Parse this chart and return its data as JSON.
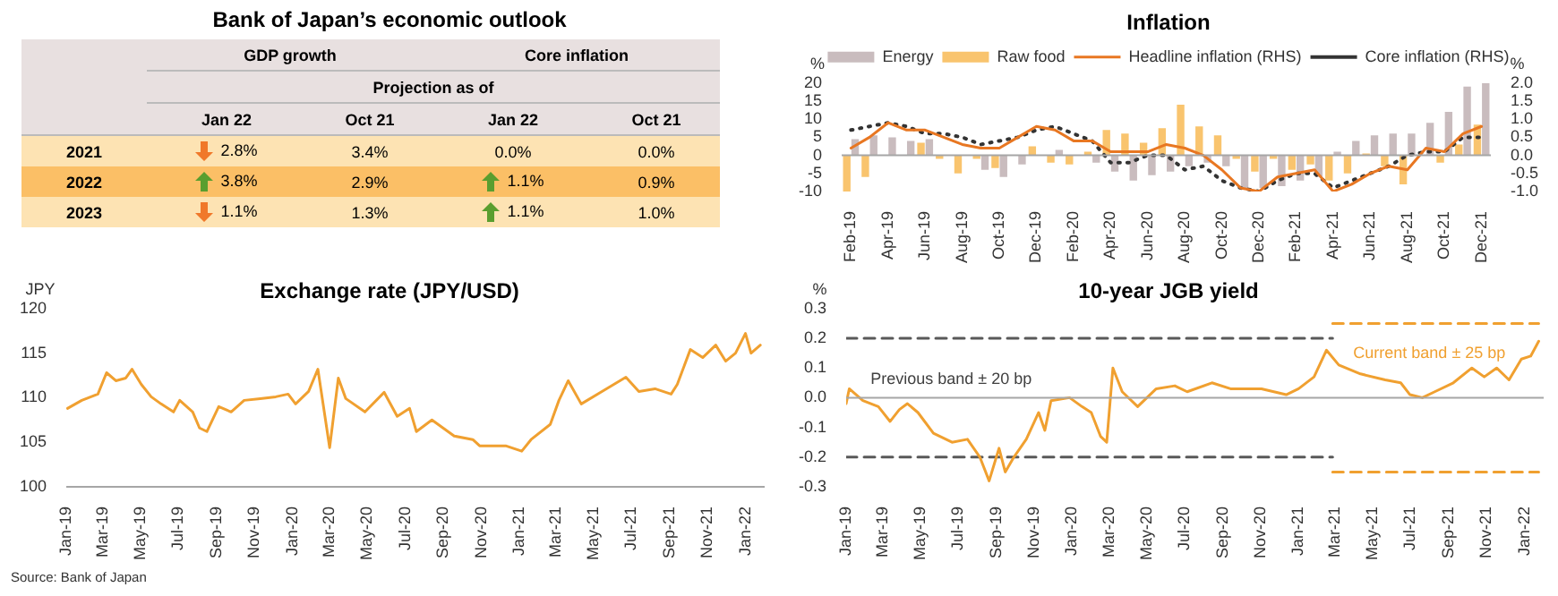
{
  "chart_data": [
    {
      "type": "other",
      "title": "Bank of Japan’s economic outlook",
      "annotations": [
        "GDP growth",
        "Core inflation",
        "Projection as of"
      ],
      "categories": [
        "Jan 22",
        "Oct 21",
        "Jan 22",
        "Oct 21"
      ],
      "y_categories": [
        "2021",
        "2022",
        "2023"
      ],
      "cell_labels": [
        [
          "2.8%",
          "3.4%",
          "0.0%",
          "0.0%"
        ],
        [
          "3.8%",
          "2.9%",
          "1.1%",
          "0.9%"
        ],
        [
          "1.1%",
          "1.3%",
          "1.1%",
          "1.0%"
        ]
      ]
    },
    {
      "type": "bar",
      "title": "Inflation",
      "ylabel": "%",
      "y2label": "%",
      "legend": "top",
      "categories": [
        "Feb-19",
        null,
        "Apr-19",
        null,
        "Jun-19",
        null,
        "Aug-19",
        null,
        "Oct-19",
        null,
        "Dec-19",
        null,
        "Feb-20",
        null,
        "Apr-20",
        null,
        "Jun-20",
        null,
        "Aug-20",
        null,
        "Oct-20",
        null,
        "Dec-20",
        null,
        "Feb-21",
        null,
        "Apr-21",
        null,
        "Jun-21",
        null,
        "Aug-21",
        null,
        "Oct-21",
        null,
        "Dec-21"
      ],
      "ylim": [
        -10,
        20
      ],
      "yticks": [
        -10,
        -5,
        0,
        5,
        10,
        15,
        20
      ],
      "y2lim": [
        -1,
        2
      ],
      "y2ticks": [
        {
          "value": -1,
          "label": "-1.0"
        },
        {
          "value": -0.5,
          "label": "-0.5"
        },
        {
          "value": 0,
          "label": "0.0"
        },
        {
          "value": 0.5,
          "label": "0.5"
        },
        {
          "value": 1,
          "label": "1.0"
        },
        {
          "value": 1.5,
          "label": "1.5"
        },
        {
          "value": 2,
          "label": "2.0"
        }
      ],
      "series": [
        {
          "name": "Energy",
          "color": "#c9bcbe",
          "values": [
            4.5,
            5.5,
            5,
            4,
            4.5,
            0,
            0,
            -4,
            -6,
            -2.5,
            null,
            1.5,
            null,
            -2,
            -4.5,
            -7,
            -5.5,
            -4.5,
            -3,
            -2,
            -3,
            -9,
            -9,
            -8.5,
            -7,
            -6,
            1,
            4,
            5.5,
            6,
            6,
            9,
            12,
            19,
            20
          ]
        },
        {
          "name": "Raw food",
          "color": "#f9c46e",
          "values": [
            -10,
            -6,
            0,
            0,
            3.5,
            -1,
            -5,
            -1,
            -3.5,
            0,
            2.5,
            -2,
            -2.5,
            1,
            7,
            6,
            3.5,
            7.5,
            14,
            8,
            5.5,
            -1,
            -4.5,
            -1,
            -4,
            -2.5,
            -7,
            -5,
            0.5,
            -3,
            -8,
            0,
            -2,
            3,
            8.5
          ]
        },
        {
          "name": "Headline inflation (RHS)",
          "type": "line",
          "axis": "y2",
          "color": "#e87722",
          "values": [
            0.2,
            0.5,
            0.9,
            0.7,
            0.7,
            0.5,
            0.3,
            0.2,
            0.2,
            0.5,
            0.8,
            0.7,
            0.4,
            0.4,
            0.1,
            0.1,
            0.1,
            0.3,
            0.2,
            0.0,
            -0.4,
            -0.9,
            -1.0,
            -0.6,
            -0.5,
            -0.4,
            -1.0,
            -0.8,
            -0.5,
            -0.3,
            -0.4,
            0.2,
            0.1,
            0.6,
            0.8
          ]
        },
        {
          "name": "Core inflation (RHS)",
          "type": "line",
          "axis": "y2",
          "color": "#333333",
          "line_style": "dotted",
          "values": [
            0.7,
            0.8,
            0.9,
            0.8,
            0.6,
            0.6,
            0.5,
            0.3,
            0.4,
            0.5,
            0.7,
            0.8,
            0.6,
            0.4,
            -0.2,
            -0.2,
            0.0,
            0.0,
            -0.4,
            -0.3,
            -0.7,
            -0.9,
            -1.0,
            -0.7,
            -0.5,
            -0.5,
            -0.9,
            -0.7,
            -0.5,
            -0.3,
            0.0,
            0.1,
            0.1,
            0.5,
            0.5
          ]
        }
      ]
    },
    {
      "type": "line",
      "title": "Exchange rate (JPY/USD)",
      "ylabel": "JPY",
      "color": "#f0a030",
      "x": [
        "2019-01-03",
        "2019-01-26",
        "2019-02-21",
        "2019-03-07",
        "2019-03-22",
        "2019-04-07",
        "2019-04-17",
        "2019-05-02",
        "2019-05-18",
        "2019-06-03",
        "2019-06-23",
        "2019-07-03",
        "2019-07-24",
        "2019-08-04",
        "2019-08-16",
        "2019-09-04",
        "2019-09-24",
        "2019-10-15",
        "2019-11-10",
        "2019-12-05",
        "2019-12-25",
        "2020-01-06",
        "2020-01-27",
        "2020-02-11",
        "2020-03-01",
        "2020-03-15",
        "2020-03-27",
        "2020-04-27",
        "2020-05-28",
        "2020-06-18",
        "2020-07-08",
        "2020-07-19",
        "2020-08-13",
        "2020-09-18",
        "2020-10-18",
        "2020-10-29",
        "2020-12-10",
        "2021-01-05",
        "2021-01-20",
        "2021-02-20",
        "2021-03-06",
        "2021-03-21",
        "2021-04-11",
        "2021-05-12",
        "2021-06-22",
        "2021-07-13",
        "2021-08-08",
        "2021-09-03",
        "2021-09-13",
        "2021-10-04",
        "2021-10-24",
        "2021-11-14",
        "2021-11-30",
        "2021-12-16",
        "2022-01-01",
        "2022-01-10",
        "2022-01-25"
      ],
      "values": [
        108.8,
        109.7,
        110.4,
        112.8,
        111.9,
        112.2,
        113.2,
        111.5,
        110.1,
        109.3,
        108.4,
        109.7,
        108.4,
        106.6,
        106.2,
        109.0,
        108.4,
        109.7,
        109.9,
        110.1,
        110.4,
        109.3,
        110.7,
        113.2,
        104.4,
        112.2,
        109.9,
        108.4,
        110.6,
        107.9,
        108.8,
        106.2,
        107.5,
        105.7,
        105.3,
        104.6,
        104.6,
        104.0,
        105.3,
        107.0,
        109.7,
        111.9,
        109.3,
        110.6,
        112.3,
        110.7,
        111.0,
        110.4,
        111.5,
        115.4,
        114.5,
        115.9,
        114.1,
        115.0,
        117.2,
        115.0,
        115.9
      ],
      "xlim": [
        "2019-01-01",
        "2022-02-01"
      ],
      "xticks": [
        {
          "value": "2019-01",
          "label": "Jan-19"
        },
        {
          "value": "2019-03",
          "label": "Mar-19"
        },
        {
          "value": "2019-05",
          "label": "May-19"
        },
        {
          "value": "2019-07",
          "label": "Jul-19"
        },
        {
          "value": "2019-09",
          "label": "Sep-19"
        },
        {
          "value": "2019-11",
          "label": "Nov-19"
        },
        {
          "value": "2020-01",
          "label": "Jan-20"
        },
        {
          "value": "2020-03",
          "label": "Mar-20"
        },
        {
          "value": "2020-05",
          "label": "May-20"
        },
        {
          "value": "2020-07",
          "label": "Jul-20"
        },
        {
          "value": "2020-09",
          "label": "Sep-20"
        },
        {
          "value": "2020-11",
          "label": "Nov-20"
        },
        {
          "value": "2021-01",
          "label": "Jan-21"
        },
        {
          "value": "2021-03",
          "label": "Mar-21"
        },
        {
          "value": "2021-05",
          "label": "May-21"
        },
        {
          "value": "2021-07",
          "label": "Jul-21"
        },
        {
          "value": "2021-09",
          "label": "Sep-21"
        },
        {
          "value": "2021-11",
          "label": "Nov-21"
        },
        {
          "value": "2022-01",
          "label": "Jan-22"
        }
      ],
      "ylim": [
        100,
        120
      ],
      "yticks": [
        100,
        105,
        110,
        115,
        120
      ],
      "annotations": [
        "Source: Bank of Japan"
      ]
    },
    {
      "type": "line",
      "title": "10-year JGB yield",
      "ylabel": "%",
      "series": [
        {
          "color": "#f0a030",
          "x": [
            "2019-01-01",
            "2019-01-06",
            "2019-01-28",
            "2019-02-22",
            "2019-03-13",
            "2019-03-28",
            "2019-04-10",
            "2019-04-27",
            "2019-05-22",
            "2019-06-21",
            "2019-07-16",
            "2019-08-05",
            "2019-08-20",
            "2019-09-05",
            "2019-09-15",
            "2019-09-29",
            "2019-10-19",
            "2019-11-08",
            "2019-11-18",
            "2019-11-28",
            "2019-12-28",
            "2020-01-17",
            "2020-02-01",
            "2020-02-16",
            "2020-02-26",
            "2020-03-07",
            "2020-03-22",
            "2020-04-16",
            "2020-05-16",
            "2020-06-15",
            "2020-07-05",
            "2020-08-14",
            "2020-09-13",
            "2020-11-02",
            "2020-12-12",
            "2021-01-01",
            "2021-01-26",
            "2021-02-15",
            "2021-03-07",
            "2021-04-11",
            "2021-05-21",
            "2021-06-15",
            "2021-06-30",
            "2021-07-20",
            "2021-08-09",
            "2021-09-08",
            "2021-10-08",
            "2021-10-28",
            "2021-11-17",
            "2021-12-07",
            "2021-12-27",
            "2022-01-11",
            "2022-01-24"
          ],
          "values": [
            -0.02,
            0.03,
            -0.01,
            -0.03,
            -0.08,
            -0.04,
            -0.02,
            -0.05,
            -0.12,
            -0.15,
            -0.14,
            -0.2,
            -0.28,
            -0.17,
            -0.25,
            -0.2,
            -0.14,
            -0.05,
            -0.11,
            -0.01,
            0.0,
            -0.03,
            -0.05,
            -0.13,
            -0.15,
            0.1,
            0.02,
            -0.03,
            0.03,
            0.04,
            0.02,
            0.05,
            0.03,
            0.03,
            0.01,
            0.03,
            0.07,
            0.16,
            0.11,
            0.08,
            0.06,
            0.05,
            0.01,
            0.0,
            0.02,
            0.05,
            0.1,
            0.07,
            0.1,
            0.06,
            0.13,
            0.14,
            0.19
          ]
        },
        {
          "color": "#595959",
          "line_style": "dashed",
          "x": [
            "2019-01-01",
            "2021-02-25"
          ],
          "values": [
            0.2,
            0.2
          ]
        },
        {
          "color": "#595959",
          "line_style": "dashed",
          "x": [
            "2019-01-01",
            "2021-02-25"
          ],
          "values": [
            -0.2,
            -0.2
          ]
        },
        {
          "color": "#f0a030",
          "line_style": "dashed",
          "x": [
            "2021-02-25",
            "2022-01-24"
          ],
          "values": [
            0.25,
            0.25
          ]
        },
        {
          "color": "#f0a030",
          "line_style": "dashed",
          "x": [
            "2021-02-25",
            "2022-01-24"
          ],
          "values": [
            -0.25,
            -0.25
          ]
        }
      ],
      "xlim": [
        "2019-01-01",
        "2022-02-01"
      ],
      "xticks": [
        {
          "value": "2019-01",
          "label": "Jan-19"
        },
        {
          "value": "2019-03",
          "label": "Mar-19"
        },
        {
          "value": "2019-05",
          "label": "May-19"
        },
        {
          "value": "2019-07",
          "label": "Jul-19"
        },
        {
          "value": "2019-09",
          "label": "Sep-19"
        },
        {
          "value": "2019-11",
          "label": "Nov-19"
        },
        {
          "value": "2020-01",
          "label": "Jan-20"
        },
        {
          "value": "2020-03",
          "label": "Mar-20"
        },
        {
          "value": "2020-05",
          "label": "May-20"
        },
        {
          "value": "2020-07",
          "label": "Jul-20"
        },
        {
          "value": "2020-09",
          "label": "Sep-20"
        },
        {
          "value": "2020-11",
          "label": "Nov-20"
        },
        {
          "value": "2021-01",
          "label": "Jan-21"
        },
        {
          "value": "2021-03",
          "label": "Mar-21"
        },
        {
          "value": "2021-05",
          "label": "May-21"
        },
        {
          "value": "2021-07",
          "label": "Jul-21"
        },
        {
          "value": "2021-09",
          "label": "Sep-21"
        },
        {
          "value": "2021-11",
          "label": "Nov-21"
        },
        {
          "value": "2022-01",
          "label": "Jan-22"
        }
      ],
      "ylim": [
        -0.3,
        0.3
      ],
      "yticks": [
        {
          "value": -0.3,
          "label": "-0.3"
        },
        {
          "value": -0.2,
          "label": "-0.2"
        },
        {
          "value": -0.1,
          "label": "-0.1"
        },
        {
          "value": 0,
          "label": "0.0"
        },
        {
          "value": 0.1,
          "label": "0.1"
        },
        {
          "value": 0.2,
          "label": "0.2"
        },
        {
          "value": 0.3,
          "label": "0.3"
        }
      ],
      "annotations": [
        "Previous band ± 20 bp",
        "Current band ± 25 bp"
      ]
    }
  ]
}
